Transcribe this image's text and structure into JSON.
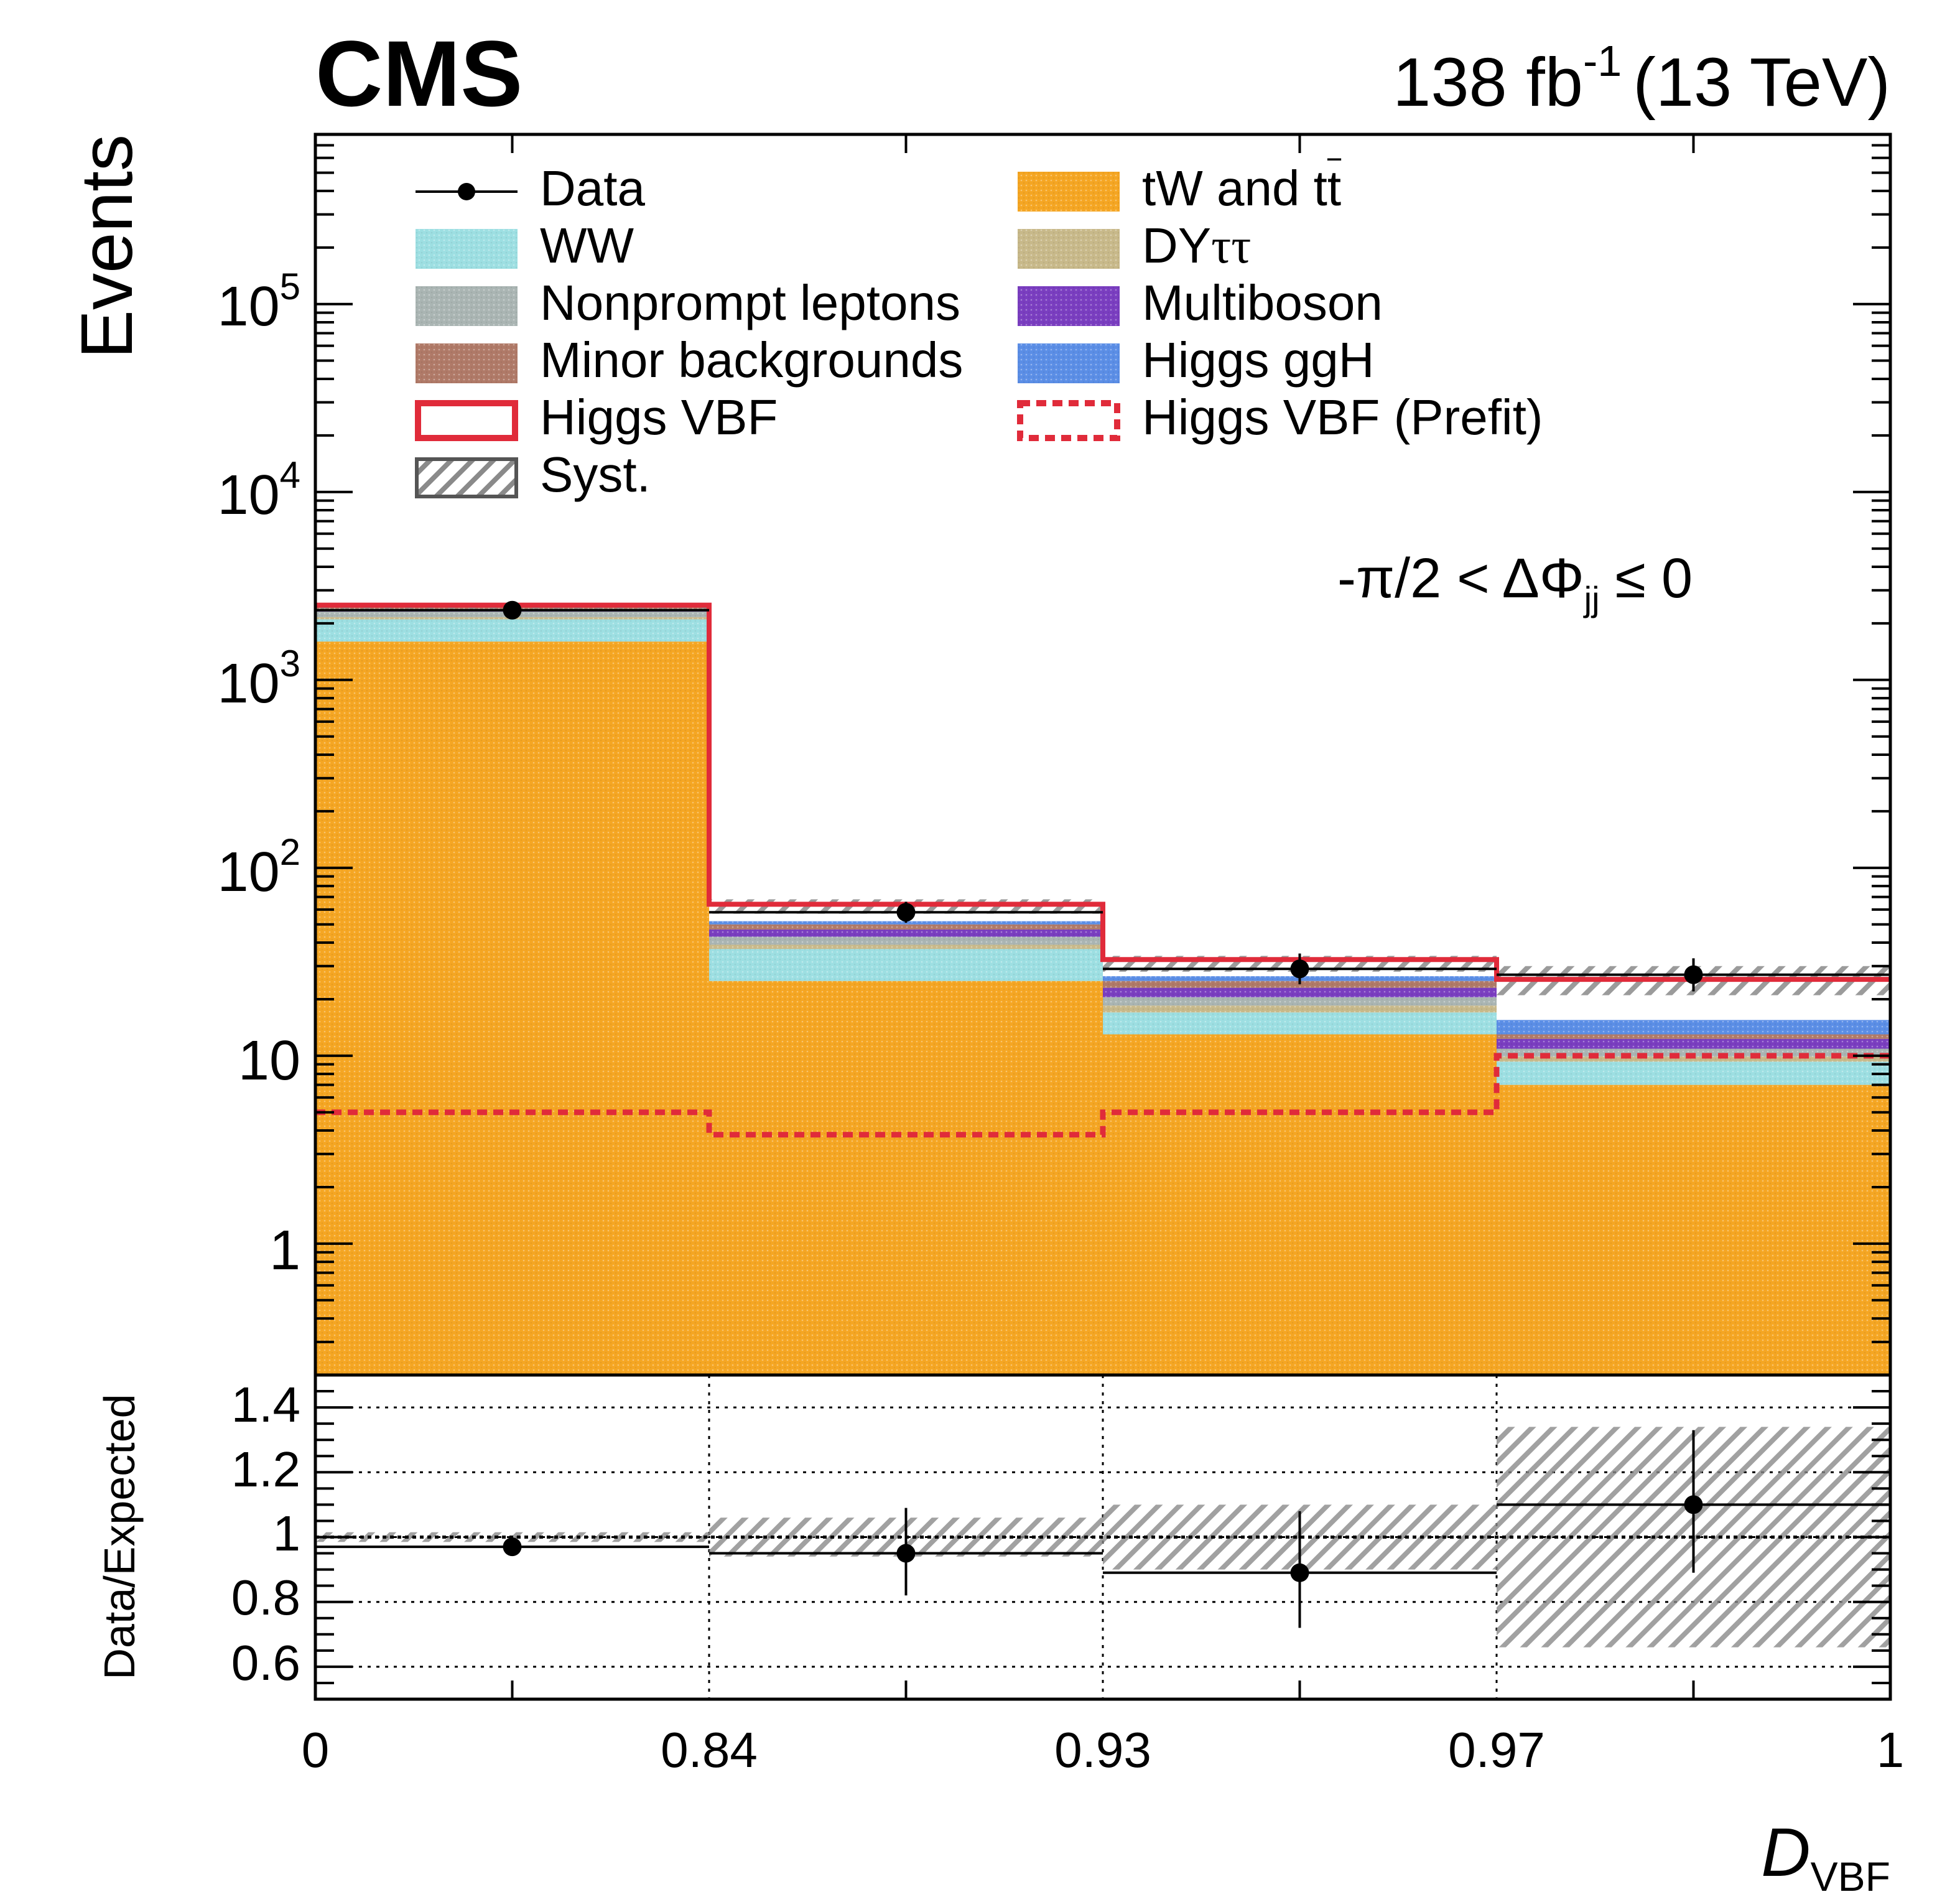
{
  "header": {
    "experiment": "CMS",
    "lumi_value": "138 fb",
    "lumi_exp": "-1",
    "energy": "(13 TeV)"
  },
  "region_label": {
    "prefix": "-π/2 < ΔΦ",
    "subscript": "jj",
    "suffix": " ≤ 0"
  },
  "legend": {
    "data": "Data",
    "ww": "WW",
    "nonprompt": "Nonprompt leptons",
    "minor": "Minor backgrounds",
    "vbf": "Higgs VBF",
    "syst": "Syst.",
    "tw_prefix": "tW and t",
    "tw_tbar": "t",
    "dy_prefix": "DY",
    "dy_suffix": "ττ",
    "multiboson": "Multiboson",
    "ggh": "Higgs ggH",
    "vbf_prefit": "Higgs VBF (Prefit)"
  },
  "axes": {
    "ylabel_top": "Events",
    "ylabel_ratio": "Data/Expected",
    "xlabel_main": "D",
    "xlabel_sub": "VBF",
    "ytick_labels": [
      {
        "base": "1",
        "exp": ""
      },
      {
        "base": "10",
        "exp": ""
      },
      {
        "base": "10",
        "exp": "2"
      },
      {
        "base": "10",
        "exp": "3"
      },
      {
        "base": "10",
        "exp": "4"
      },
      {
        "base": "10",
        "exp": "5"
      }
    ],
    "ratio_tick_labels": [
      "0.6",
      "0.8",
      "1",
      "1.2",
      "1.4"
    ],
    "xtick_labels": [
      "0",
      "0.84",
      "0.93",
      "0.97",
      "1"
    ]
  },
  "colors": {
    "tw": "#f5a623",
    "ww": "#9ddfe2",
    "dy": "#c8b98a",
    "nonprompt": "#aab5b3",
    "multiboson": "#7a3ec0",
    "minor": "#b07a68",
    "ggh": "#5b8ee6",
    "vbf": "#e02b3a",
    "syst": "#808080"
  },
  "chart_data": {
    "type": "bar",
    "stacked": true,
    "yscale": "log",
    "ylim": [
      0.2,
      800000
    ],
    "ratio_ylim": [
      0.5,
      1.5
    ],
    "bin_edges_labels": [
      "0",
      "0.84",
      "0.93",
      "0.97",
      "1"
    ],
    "series": [
      {
        "key": "tw",
        "name": "tW and tt̄",
        "values": [
          1600,
          25,
          13,
          7
        ]
      },
      {
        "key": "ww",
        "name": "WW",
        "values": [
          500,
          12,
          4,
          2.3
        ]
      },
      {
        "key": "dy",
        "name": "DYττ",
        "values": [
          60,
          2,
          1.5,
          0.6
        ]
      },
      {
        "key": "nonprompt",
        "name": "Nonprompt leptons",
        "values": [
          150,
          4,
          2,
          1
        ]
      },
      {
        "key": "multiboson",
        "name": "Multiboson",
        "values": [
          40,
          4,
          2.5,
          1.4
        ]
      },
      {
        "key": "minor",
        "name": "Minor backgrounds",
        "values": [
          100,
          3,
          2,
          0.7
        ]
      },
      {
        "key": "ggh",
        "name": "Higgs ggH",
        "values": [
          30,
          2,
          1.5,
          2.5
        ]
      },
      {
        "key": "vbf",
        "name": "Higgs VBF",
        "values": [
          20,
          12,
          6,
          10
        ]
      }
    ],
    "prefit_vbf": [
      5,
      3.8,
      5,
      10
    ],
    "syst_band": {
      "low": [
        2400,
        57,
        28,
        21
      ],
      "high": [
        2560,
        68,
        34,
        30
      ]
    },
    "data": {
      "values": [
        2350,
        58,
        29,
        27
      ],
      "err_low": [
        50,
        7,
        5,
        5
      ],
      "err_high": [
        50,
        8,
        6,
        6
      ]
    },
    "ratio": {
      "values": [
        0.97,
        0.95,
        0.89,
        1.1
      ],
      "err_low": [
        0.02,
        0.13,
        0.17,
        0.21
      ],
      "err_high": [
        0.02,
        0.14,
        0.19,
        0.23
      ],
      "syst_low": [
        0.985,
        0.94,
        0.9,
        0.66
      ],
      "syst_high": [
        1.015,
        1.06,
        1.1,
        1.34
      ]
    }
  }
}
